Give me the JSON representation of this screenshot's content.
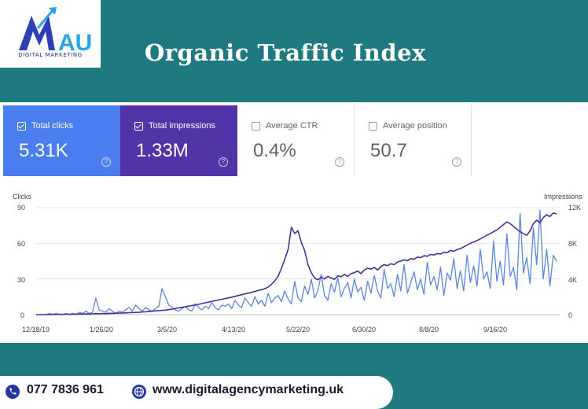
{
  "brand": {
    "logo_letters": "MAU",
    "logo_subtitle": "DIGITAL MARKETING"
  },
  "page": {
    "title": "Organic Traffic Index"
  },
  "metrics": [
    {
      "label": "Total clicks",
      "value": "5.31K",
      "selected": true,
      "color": "#4a7ef0"
    },
    {
      "label": "Total impressions",
      "value": "1.33M",
      "selected": true,
      "color": "#5234a8"
    },
    {
      "label": "Average CTR",
      "value": "0.4%",
      "selected": false
    },
    {
      "label": "Average position",
      "value": "50.7",
      "selected": false
    }
  ],
  "chart_data": {
    "type": "line",
    "left_axis_label": "Clicks",
    "right_axis_label": "Impressions",
    "left_ticks": [
      "90",
      "60",
      "30",
      "0"
    ],
    "right_ticks": [
      "12K",
      "8K",
      "4K",
      "0"
    ],
    "left_ylim": [
      0,
      90
    ],
    "right_ylim": [
      0,
      12000
    ],
    "x_ticks": [
      "12/18/19",
      "1/26/20",
      "3/5/20",
      "4/13/20",
      "5/22/20",
      "6/30/20",
      "8/8/20",
      "9/16/20"
    ],
    "grid": true,
    "series": [
      {
        "name": "Clicks",
        "axis": "left",
        "color": "#5b86dd",
        "values": [
          0,
          0,
          0,
          0,
          1,
          0,
          1,
          0,
          0,
          1,
          0,
          1,
          0,
          2,
          1,
          3,
          1,
          2,
          14,
          4,
          3,
          2,
          5,
          3,
          1,
          3,
          2,
          4,
          6,
          3,
          8,
          5,
          3,
          6,
          4,
          3,
          5,
          7,
          22,
          15,
          8,
          6,
          4,
          3,
          5,
          7,
          4,
          3,
          9,
          6,
          4,
          7,
          5,
          10,
          6,
          4,
          8,
          7,
          9,
          5,
          12,
          8,
          6,
          14,
          10,
          7,
          15,
          9,
          12,
          7,
          18,
          10,
          14,
          16,
          11,
          20,
          13,
          9,
          28,
          14,
          11,
          24,
          17,
          30,
          14,
          20,
          34,
          16,
          12,
          26,
          19,
          31,
          15,
          22,
          27,
          14,
          30,
          19,
          23,
          12,
          28,
          18,
          33,
          20,
          14,
          38,
          22,
          26,
          15,
          34,
          20,
          42,
          18,
          27,
          36,
          21,
          30,
          17,
          44,
          25,
          32,
          21,
          40,
          16,
          35,
          29,
          47,
          22,
          37,
          20,
          50,
          27,
          41,
          24,
          55,
          30,
          36,
          22,
          62,
          28,
          45,
          25,
          68,
          32,
          40,
          21,
          85,
          35,
          48,
          26,
          73,
          42,
          88,
          30,
          55,
          24,
          50,
          45
        ]
      },
      {
        "name": "Impressions",
        "axis": "right",
        "color": "#4b2e96",
        "values": [
          0,
          0,
          0,
          0,
          20,
          30,
          20,
          40,
          30,
          50,
          40,
          60,
          50,
          70,
          60,
          80,
          70,
          90,
          120,
          100,
          130,
          110,
          150,
          140,
          160,
          170,
          180,
          190,
          210,
          230,
          250,
          260,
          300,
          320,
          340,
          380,
          420,
          450,
          480,
          500,
          560,
          620,
          700,
          760,
          820,
          880,
          950,
          1020,
          1080,
          1160,
          1240,
          1320,
          1400,
          1480,
          1560,
          1640,
          1720,
          1800,
          1880,
          1960,
          2050,
          2140,
          2230,
          2320,
          2410,
          2500,
          2600,
          2700,
          2800,
          2900,
          3100,
          3400,
          3800,
          4300,
          5200,
          6200,
          7300,
          9800,
          9100,
          9400,
          8100,
          7200,
          5600,
          4700,
          4100,
          3900,
          4200,
          4000,
          4300,
          4100,
          3950,
          4350,
          4250,
          4500,
          4300,
          4600,
          4700,
          4900,
          4600,
          5000,
          5200,
          5100,
          5300,
          5000,
          5400,
          5600,
          5500,
          5700,
          5600,
          5900,
          6000,
          6150,
          6050,
          6300,
          6200,
          6450,
          6400,
          6600,
          6550,
          6750,
          6700,
          6850,
          6800,
          7000,
          6950,
          7200,
          7100,
          7300,
          7400,
          7600,
          7800,
          8000,
          8150,
          8300,
          8500,
          8700,
          8900,
          9100,
          9300,
          9500,
          9800,
          10100,
          10400,
          10200,
          9900,
          9600,
          9300,
          9100,
          8900,
          9400,
          10200,
          10600,
          10300,
          10900,
          11200,
          11000,
          11400,
          11300
        ]
      }
    ]
  },
  "footer": {
    "phone": "077 7836 961",
    "website": "www.digitalagencymarketing.uk",
    "icons": [
      "phone-icon",
      "globe-icon"
    ],
    "accent_color": "#2235a3"
  }
}
